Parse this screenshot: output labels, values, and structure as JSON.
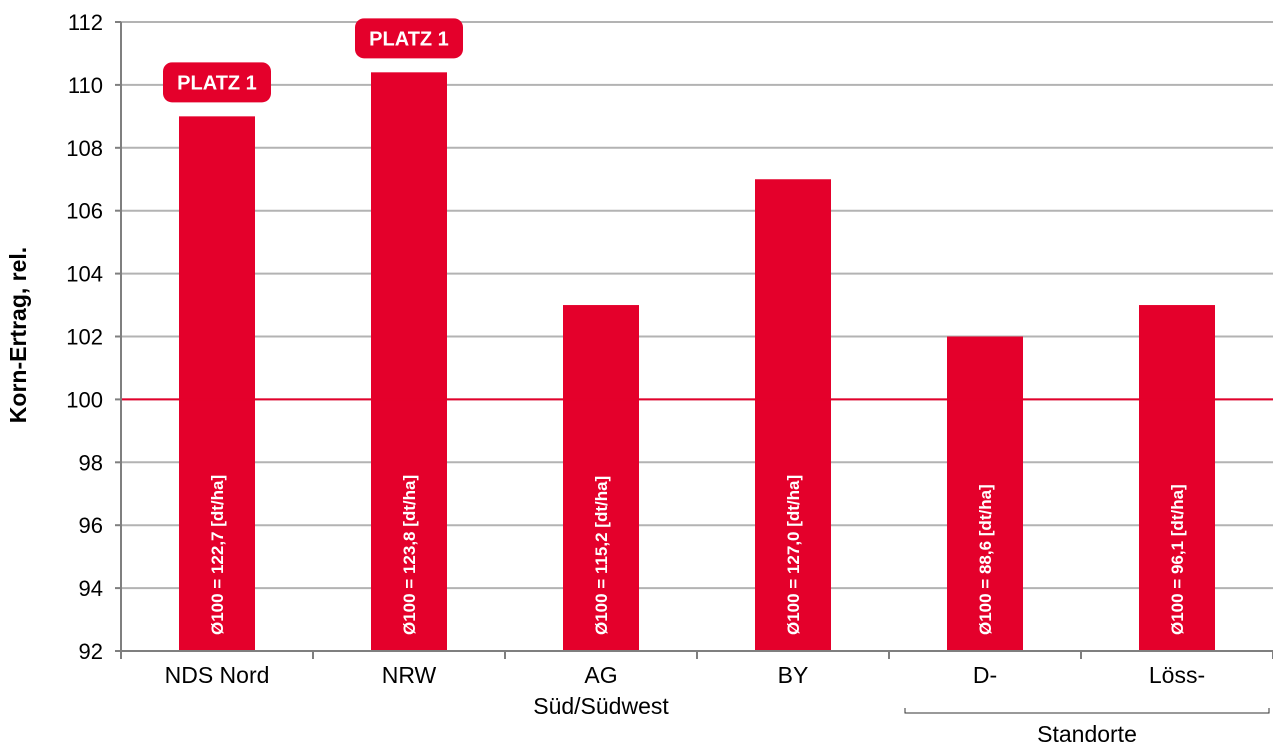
{
  "chart_data": {
    "type": "bar",
    "ylabel": "Korn-Ertrag, rel.",
    "ylim": [
      92,
      112
    ],
    "yticks": [
      92,
      94,
      96,
      98,
      100,
      102,
      104,
      106,
      108,
      110,
      112
    ],
    "reference_line": 100,
    "grid": true,
    "categories": [
      {
        "line1": "NDS Nord",
        "line2": ""
      },
      {
        "line1": "NRW",
        "line2": ""
      },
      {
        "line1": "AG",
        "line2": "Süd/Südwest"
      },
      {
        "line1": "BY",
        "line2": ""
      },
      {
        "line1": "D-",
        "line2": ""
      },
      {
        "line1": "Löss-",
        "line2": ""
      }
    ],
    "group_label": "Standorte",
    "values": [
      109.0,
      110.4,
      103.0,
      107.0,
      102.0,
      103.0
    ],
    "bar_labels": [
      "Ø100 = 122,7 [dt/ha]",
      "Ø100 = 123,8 [dt/ha]",
      "Ø100 = 115,2 [dt/ha]",
      "Ø100 = 127,0 [dt/ha]",
      "Ø100 = 88,6 [dt/ha]",
      "Ø100 = 96,1 [dt/ha]"
    ],
    "badges": [
      "PLATZ 1",
      "PLATZ 1",
      "",
      "",
      "",
      ""
    ],
    "colors": {
      "bar": "#e4002b",
      "reference": "#e4002b",
      "grid": "#b3b3b3",
      "axis": "#7f7f7f"
    }
  }
}
